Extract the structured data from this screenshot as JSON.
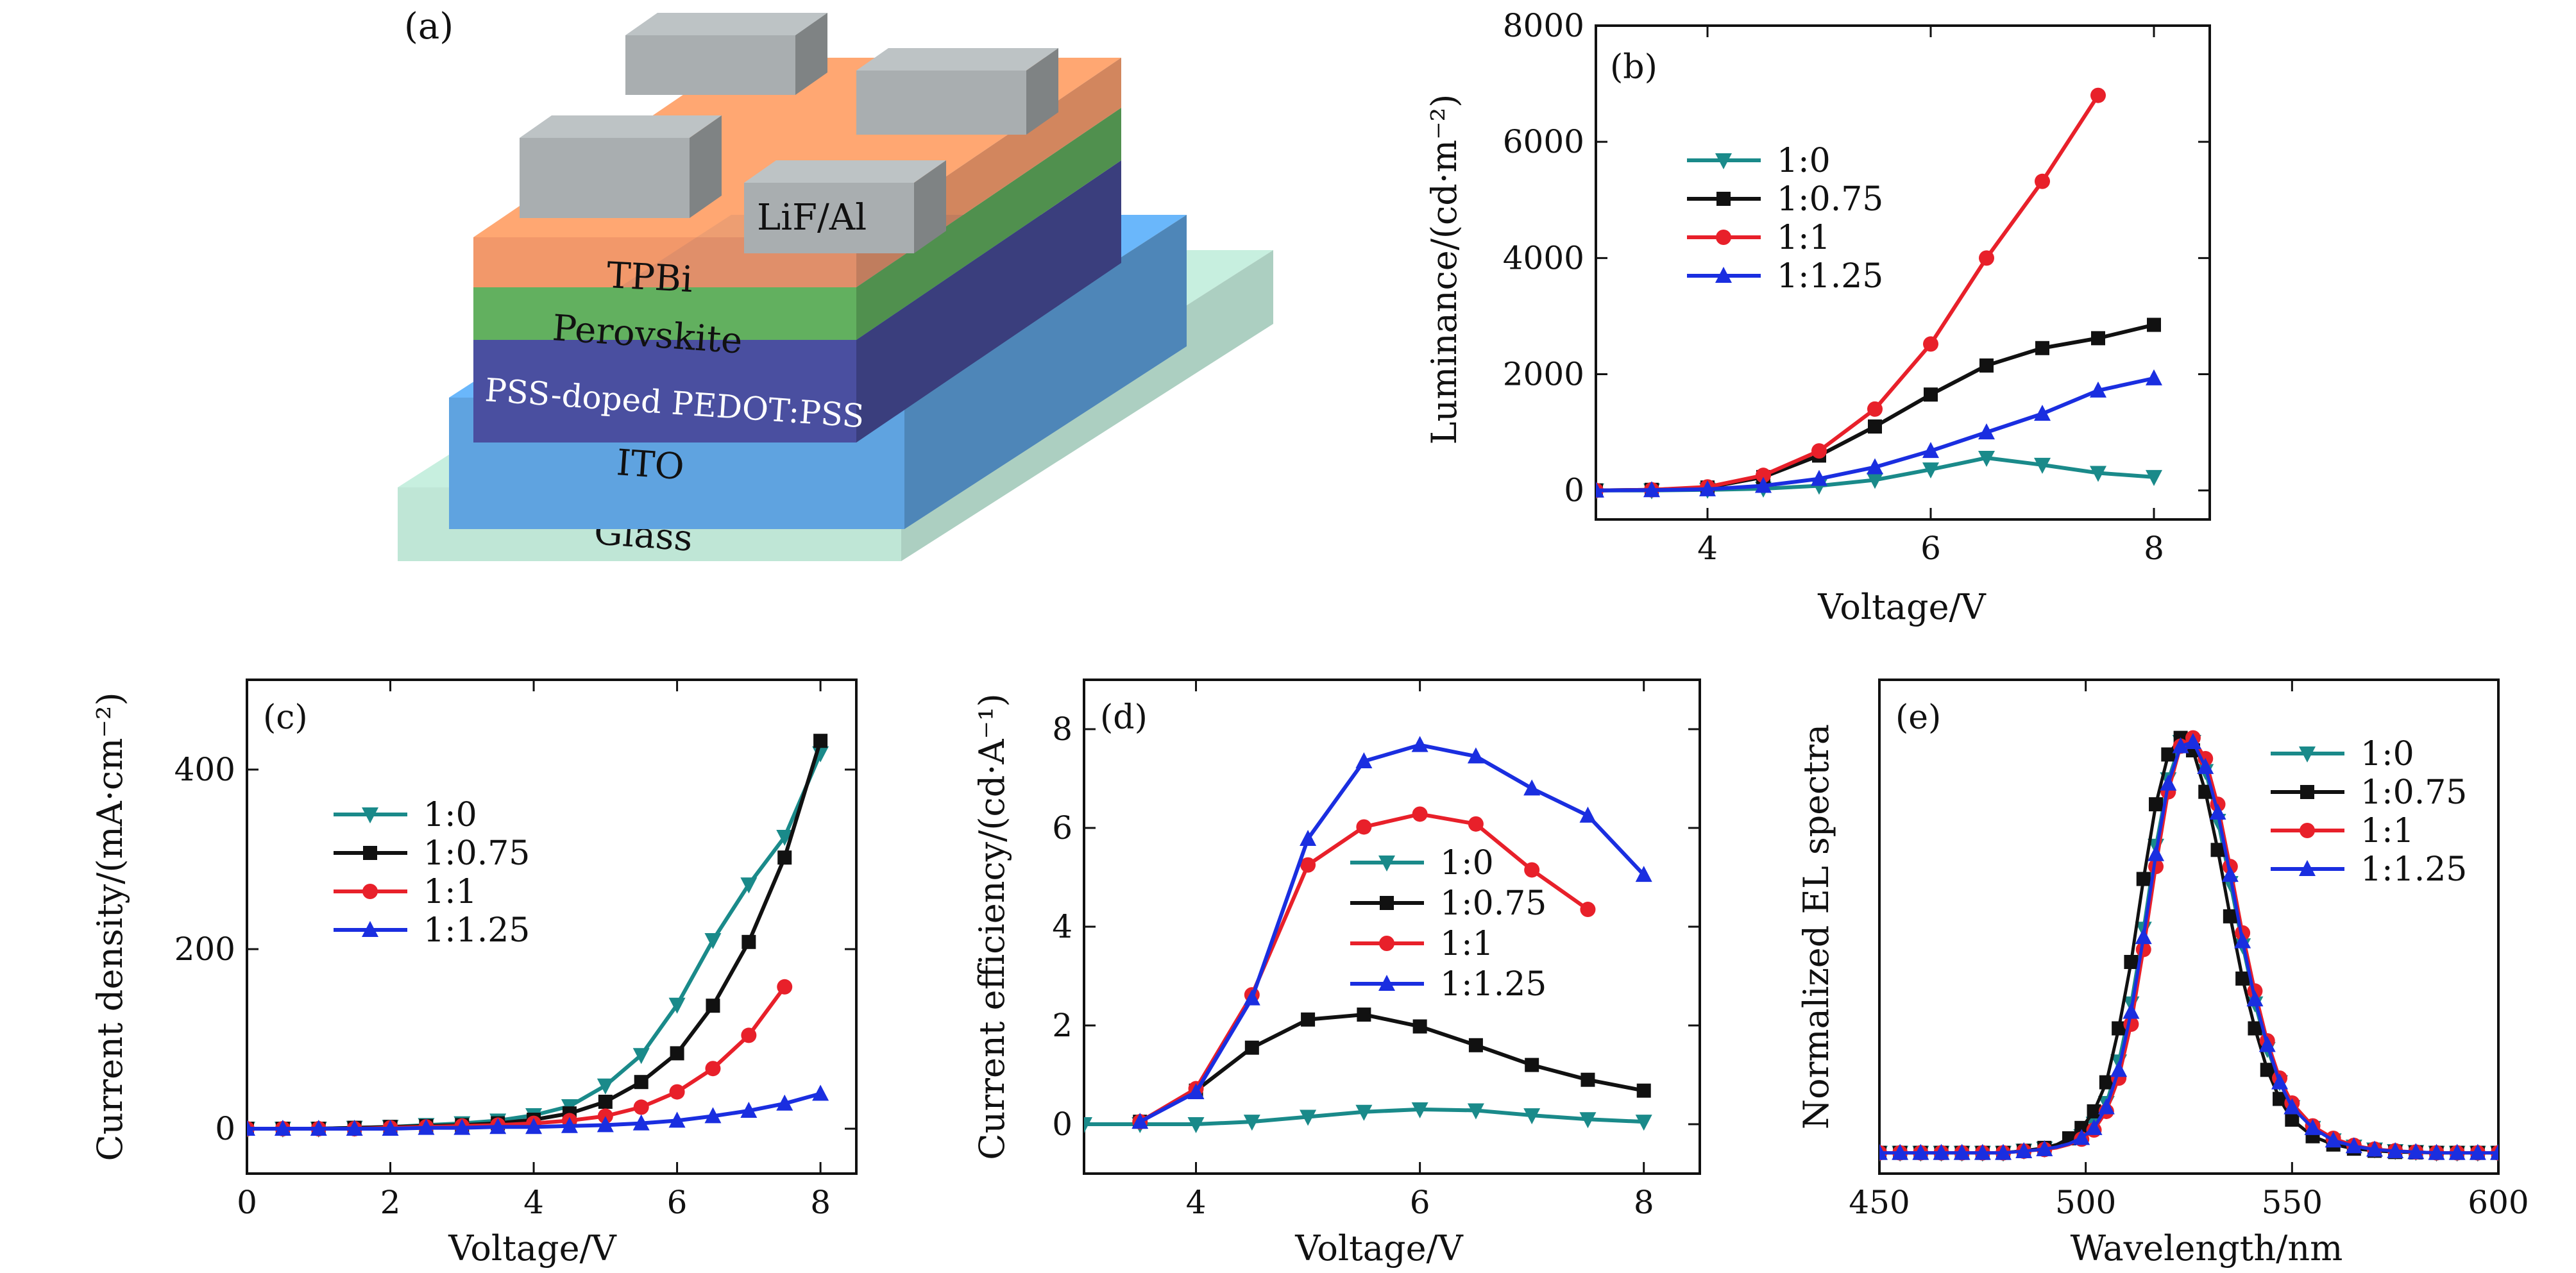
{
  "device": {
    "panel_label": "(a)",
    "layers": [
      "LiF/Al",
      "TPBi",
      "Perovskite",
      "PSS-doped PEDOT:PSS",
      "ITO",
      "Glass"
    ],
    "colors": {
      "glass": "#bfe6d6",
      "ito": "#5fa3e0",
      "pedot": "#4a4fa0",
      "perovskite": "#62b05f",
      "tpbi": "#f08a55",
      "electrode": "#a9aeb0"
    }
  },
  "chart_data": [
    {
      "id": "b",
      "panel_label": "(b)",
      "type": "line",
      "xlabel": "Voltage/V",
      "ylabel": "Luminance/(cd·m⁻²)",
      "xlim": [
        3,
        8.5
      ],
      "ylim": [
        -500,
        8000
      ],
      "xticks": [
        4,
        6,
        8
      ],
      "yticks": [
        0,
        2000,
        4000,
        6000,
        8000
      ],
      "legend_position": "upper-left",
      "series": [
        {
          "name": "1:0",
          "color": "#1a8a8a",
          "marker": "tri-down",
          "x": [
            3,
            3.5,
            4,
            4.5,
            5,
            5.5,
            6,
            6.5,
            7,
            7.5,
            8
          ],
          "y": [
            0,
            0,
            10,
            30,
            80,
            180,
            360,
            560,
            440,
            300,
            230
          ]
        },
        {
          "name": "1:0.75",
          "color": "#111111",
          "marker": "square",
          "x": [
            3,
            3.5,
            4,
            4.5,
            5,
            5.5,
            6,
            6.5,
            7,
            7.5,
            8
          ],
          "y": [
            0,
            10,
            50,
            230,
            600,
            1100,
            1650,
            2150,
            2450,
            2620,
            2850
          ]
        },
        {
          "name": "1:1",
          "color": "#e8202a",
          "marker": "circle",
          "x": [
            3,
            3.5,
            4,
            4.5,
            5,
            5.5,
            6,
            6.5,
            7,
            7.5
          ],
          "y": [
            0,
            10,
            60,
            260,
            680,
            1400,
            2520,
            4000,
            5320,
            6800
          ]
        },
        {
          "name": "1:1.25",
          "color": "#1a2ee0",
          "marker": "tri-up",
          "x": [
            3,
            3.5,
            4,
            4.5,
            5,
            5.5,
            6,
            6.5,
            7,
            7.5,
            8
          ],
          "y": [
            0,
            5,
            20,
            80,
            200,
            400,
            680,
            1000,
            1320,
            1720,
            1930
          ]
        }
      ]
    },
    {
      "id": "c",
      "panel_label": "(c)",
      "type": "line",
      "xlabel": "Voltage/V",
      "ylabel": "Current density/(mA·cm⁻²)",
      "xlim": [
        0,
        8.5
      ],
      "ylim": [
        -50,
        500
      ],
      "xticks": [
        0,
        2,
        4,
        6,
        8
      ],
      "yticks": [
        0,
        200,
        400
      ],
      "legend_position": "upper-left",
      "series": [
        {
          "name": "1:0",
          "color": "#1a8a8a",
          "marker": "tri-down",
          "x": [
            0,
            0.5,
            1,
            1.5,
            2,
            2.5,
            3,
            3.5,
            4,
            4.5,
            5,
            5.5,
            6,
            6.5,
            7,
            7.5,
            8
          ],
          "y": [
            0,
            0,
            0,
            1,
            2,
            4,
            6,
            9,
            15,
            25,
            48,
            82,
            138,
            210,
            272,
            325,
            418
          ]
        },
        {
          "name": "1:0.75",
          "color": "#111111",
          "marker": "square",
          "x": [
            0,
            0.5,
            1,
            1.5,
            2,
            2.5,
            3,
            3.5,
            4,
            4.5,
            5,
            5.5,
            6,
            6.5,
            7,
            7.5,
            8
          ],
          "y": [
            0,
            0,
            0,
            1,
            2,
            3,
            4,
            6,
            10,
            17,
            30,
            52,
            84,
            137,
            208,
            302,
            432
          ]
        },
        {
          "name": "1:1",
          "color": "#e8202a",
          "marker": "circle",
          "x": [
            0,
            0.5,
            1,
            1.5,
            2,
            2.5,
            3,
            3.5,
            4,
            4.5,
            5,
            5.5,
            6,
            6.5,
            7,
            7.5
          ],
          "y": [
            0,
            0,
            0,
            0,
            1,
            2,
            3,
            4,
            6,
            9,
            14,
            24,
            41,
            67,
            104,
            158
          ]
        },
        {
          "name": "1:1.25",
          "color": "#1a2ee0",
          "marker": "tri-up",
          "x": [
            0,
            0.5,
            1,
            1.5,
            2,
            2.5,
            3,
            3.5,
            4,
            4.5,
            5,
            5.5,
            6,
            6.5,
            7,
            7.5,
            8
          ],
          "y": [
            0,
            0,
            0,
            0,
            0,
            1,
            1,
            2,
            2,
            3,
            4,
            6,
            9,
            14,
            20,
            28,
            39
          ]
        }
      ]
    },
    {
      "id": "d",
      "panel_label": "(d)",
      "type": "line",
      "xlabel": "Voltage/V",
      "ylabel": "Current efficiency/(cd·A⁻¹)",
      "xlim": [
        3,
        8.5
      ],
      "ylim": [
        -1,
        9
      ],
      "xticks": [
        4,
        6,
        8
      ],
      "yticks": [
        0,
        2,
        4,
        6,
        8
      ],
      "legend_position": "center",
      "series": [
        {
          "name": "1:0",
          "color": "#1a8a8a",
          "marker": "tri-down",
          "x": [
            3,
            3.5,
            4,
            4.5,
            5,
            5.5,
            6,
            6.5,
            7,
            7.5,
            8
          ],
          "y": [
            0,
            0,
            0,
            0.05,
            0.15,
            0.25,
            0.3,
            0.28,
            0.18,
            0.1,
            0.05
          ]
        },
        {
          "name": "1:0.75",
          "color": "#111111",
          "marker": "square",
          "x": [
            3.5,
            4,
            4.5,
            5,
            5.5,
            6,
            6.5,
            7,
            7.5,
            8
          ],
          "y": [
            0.05,
            0.68,
            1.55,
            2.12,
            2.22,
            1.98,
            1.6,
            1.2,
            0.9,
            0.68
          ]
        },
        {
          "name": "1:1",
          "color": "#e8202a",
          "marker": "circle",
          "x": [
            3.5,
            4,
            4.5,
            5,
            5.5,
            6,
            6.5,
            7,
            7.5
          ],
          "y": [
            0.05,
            0.72,
            2.62,
            5.25,
            6.02,
            6.28,
            6.08,
            5.15,
            4.35
          ]
        },
        {
          "name": "1:1.25",
          "color": "#1a2ee0",
          "marker": "tri-up",
          "x": [
            3.5,
            4,
            4.5,
            5,
            5.5,
            6,
            6.5,
            7,
            7.5,
            8
          ],
          "y": [
            0.05,
            0.65,
            2.55,
            5.78,
            7.35,
            7.68,
            7.45,
            6.8,
            6.25,
            5.05
          ]
        }
      ]
    },
    {
      "id": "e",
      "panel_label": "(e)",
      "type": "line",
      "xlabel": "Wavelength/nm",
      "ylabel": "Normalized EL spectra",
      "xlim": [
        450,
        600
      ],
      "ylim": [
        -0.05,
        1.14
      ],
      "xticks": [
        450,
        500,
        550,
        600
      ],
      "yticks": [],
      "legend_position": "upper-right",
      "series": [
        {
          "name": "1:0",
          "color": "#1a8a8a",
          "marker": "tri-down",
          "x": [
            450,
            455,
            460,
            465,
            470,
            475,
            480,
            485,
            490,
            493,
            496,
            499,
            502,
            505,
            508,
            511,
            514,
            517,
            520,
            523,
            526,
            529,
            532,
            535,
            538,
            541,
            544,
            547,
            550,
            555,
            560,
            565,
            570,
            575,
            580,
            585,
            590,
            595,
            600
          ],
          "y": [
            0,
            0,
            0,
            0,
            0,
            0,
            0,
            0.005,
            0.01,
            0.015,
            0.025,
            0.04,
            0.07,
            0.12,
            0.22,
            0.36,
            0.54,
            0.74,
            0.9,
            0.99,
            0.99,
            0.92,
            0.8,
            0.65,
            0.5,
            0.36,
            0.25,
            0.17,
            0.11,
            0.06,
            0.03,
            0.015,
            0.008,
            0.004,
            0.002,
            0,
            0,
            0,
            0
          ]
        },
        {
          "name": "1:0.75",
          "color": "#111111",
          "marker": "square",
          "x": [
            450,
            455,
            460,
            465,
            470,
            475,
            480,
            485,
            490,
            493,
            496,
            499,
            502,
            505,
            508,
            511,
            514,
            517,
            520,
            523,
            526,
            529,
            532,
            535,
            538,
            541,
            544,
            547,
            550,
            555,
            560,
            565,
            570,
            575,
            580,
            585,
            590,
            595,
            600
          ],
          "y": [
            0,
            0,
            0,
            0,
            0,
            0,
            0,
            0.005,
            0.012,
            0.02,
            0.035,
            0.06,
            0.1,
            0.17,
            0.3,
            0.46,
            0.66,
            0.84,
            0.96,
            1.0,
            0.97,
            0.87,
            0.73,
            0.57,
            0.42,
            0.3,
            0.2,
            0.13,
            0.08,
            0.04,
            0.02,
            0.01,
            0.005,
            0.002,
            0.001,
            0,
            0,
            0,
            0
          ]
        },
        {
          "name": "1:1",
          "color": "#e8202a",
          "marker": "circle",
          "x": [
            450,
            455,
            460,
            465,
            470,
            475,
            480,
            485,
            490,
            493,
            496,
            499,
            502,
            505,
            508,
            511,
            514,
            517,
            520,
            523,
            526,
            529,
            532,
            535,
            538,
            541,
            544,
            547,
            550,
            555,
            560,
            565,
            570,
            575,
            580,
            585,
            590,
            595,
            600
          ],
          "y": [
            0,
            0,
            0,
            0,
            0,
            0,
            0,
            0.004,
            0.008,
            0.012,
            0.02,
            0.033,
            0.055,
            0.1,
            0.18,
            0.31,
            0.49,
            0.69,
            0.87,
            0.98,
            1.0,
            0.95,
            0.84,
            0.69,
            0.53,
            0.39,
            0.27,
            0.18,
            0.12,
            0.065,
            0.035,
            0.018,
            0.009,
            0.005,
            0.002,
            0,
            0,
            0,
            0
          ]
        },
        {
          "name": "1:1.25",
          "color": "#1a2ee0",
          "marker": "tri-up",
          "x": [
            450,
            455,
            460,
            465,
            470,
            475,
            480,
            485,
            490,
            493,
            496,
            499,
            502,
            505,
            508,
            511,
            514,
            517,
            520,
            523,
            526,
            529,
            532,
            535,
            538,
            541,
            544,
            547,
            550,
            555,
            560,
            565,
            570,
            575,
            580,
            585,
            590,
            595,
            600
          ],
          "y": [
            0,
            0,
            0,
            0,
            0,
            0,
            0,
            0.004,
            0.009,
            0.014,
            0.022,
            0.036,
            0.06,
            0.11,
            0.2,
            0.34,
            0.52,
            0.72,
            0.89,
            0.98,
            0.99,
            0.93,
            0.82,
            0.67,
            0.51,
            0.37,
            0.26,
            0.17,
            0.11,
            0.06,
            0.03,
            0.016,
            0.008,
            0.004,
            0.002,
            0,
            0,
            0,
            0
          ]
        }
      ]
    }
  ]
}
